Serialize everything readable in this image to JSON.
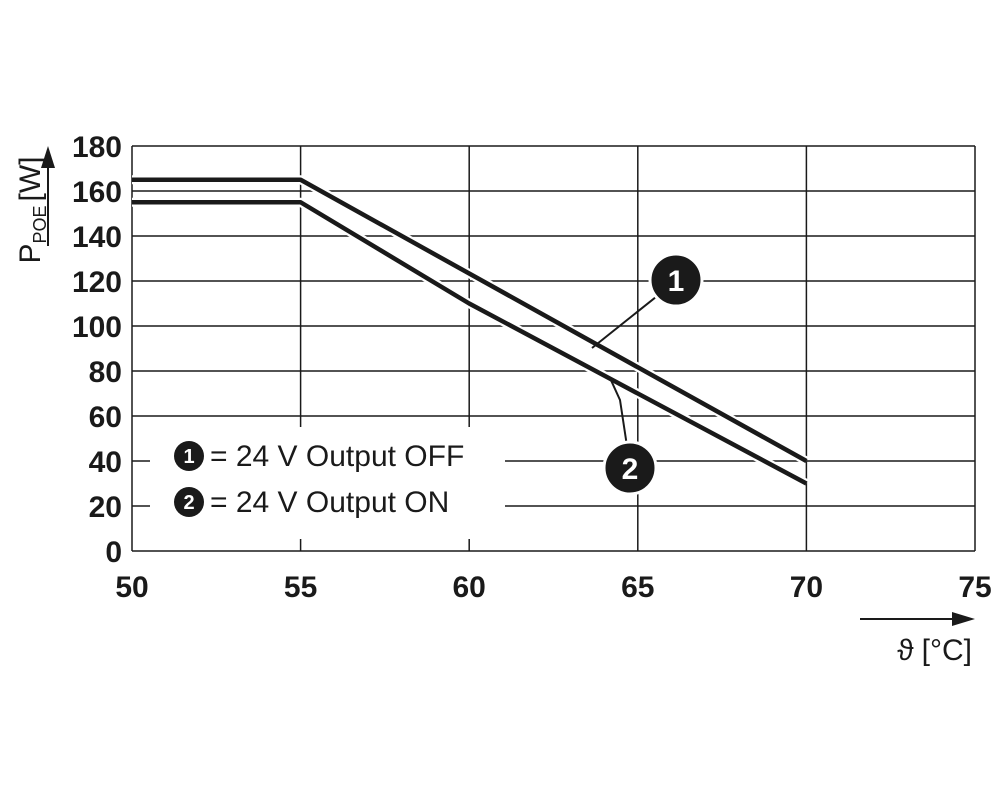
{
  "chart_data": {
    "type": "line",
    "xlabel_symbol": "ϑ",
    "xlabel_unit": "[°C]",
    "ylabel_main": "P",
    "ylabel_sub": "POE",
    "ylabel_unit": "[W]",
    "xlim": [
      50,
      75
    ],
    "ylim": [
      0,
      180
    ],
    "xticks": [
      "50",
      "55",
      "60",
      "65",
      "70",
      "75"
    ],
    "yticks": [
      "0",
      "20",
      "40",
      "60",
      "80",
      "100",
      "120",
      "140",
      "160",
      "180"
    ],
    "grid": true,
    "series": [
      {
        "id": "1",
        "x": [
          50,
          55,
          70
        ],
        "y": [
          165,
          165,
          40
        ]
      },
      {
        "id": "2",
        "x": [
          50,
          55,
          60,
          70
        ],
        "y": [
          155,
          155,
          110,
          30
        ]
      }
    ],
    "legend": [
      {
        "marker": "1",
        "text": "= 24 V Output OFF"
      },
      {
        "marker": "2",
        "text": "= 24 V Output ON"
      }
    ],
    "legend_position": "bottom-left",
    "callouts": [
      {
        "marker": "1",
        "points_to_x": 64,
        "series": "1"
      },
      {
        "marker": "2",
        "points_to_x": 64.3,
        "series": "2"
      }
    ],
    "colors": {
      "line": "#1a1a1a",
      "grid": "#1a1a1a",
      "marker_fill": "#1a1a1a",
      "marker_text": "#ffffff"
    }
  }
}
